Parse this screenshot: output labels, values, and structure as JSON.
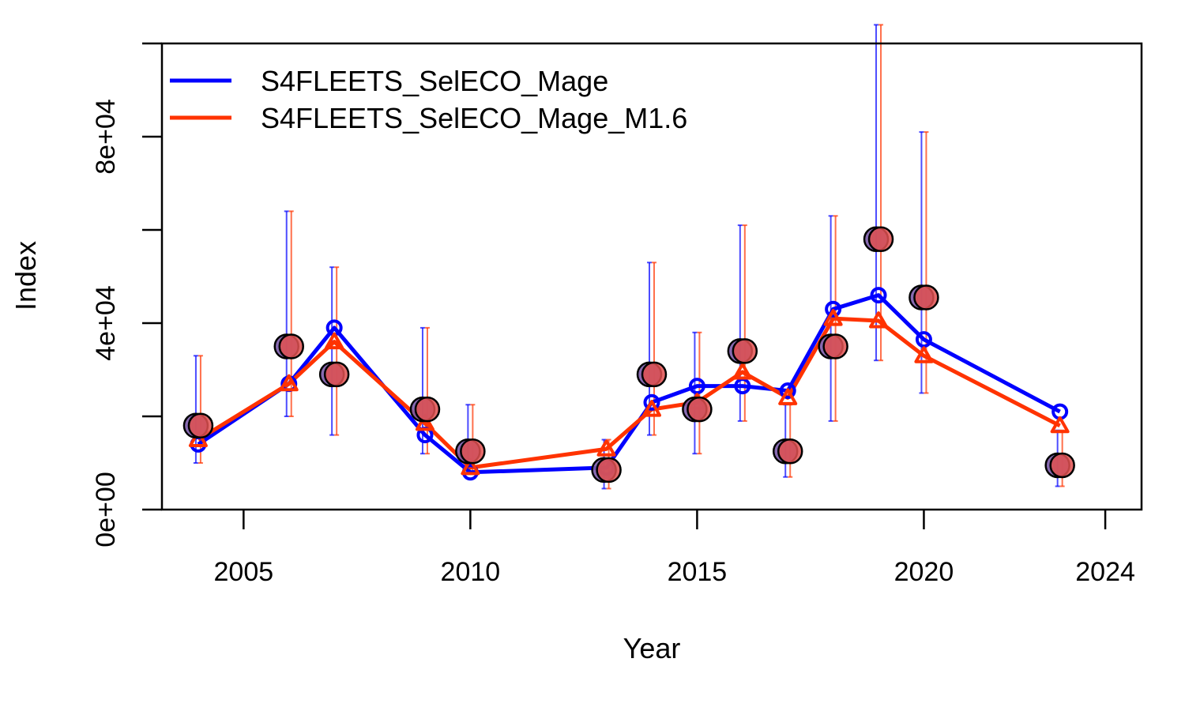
{
  "chart_data": {
    "type": "line",
    "title": "",
    "xlabel": "Year",
    "ylabel": "Index",
    "xlim": [
      2003.2,
      2024.8
    ],
    "ylim": [
      0,
      100000
    ],
    "x_ticks": [
      2005,
      2010,
      2015,
      2020,
      2024
    ],
    "y_ticks": [
      0,
      20000,
      40000,
      60000,
      80000,
      100000
    ],
    "y_tick_labels": [
      {
        "value": 0,
        "label": "0e+00"
      },
      {
        "value": 40000,
        "label": "4e+04"
      },
      {
        "value": 80000,
        "label": "8e+04"
      }
    ],
    "legend_position": "top-left",
    "observed": {
      "x": [
        2004,
        2006,
        2007,
        2009,
        2010,
        2013,
        2014,
        2015,
        2016,
        2017,
        2018,
        2019,
        2020,
        2023
      ],
      "y": [
        18000,
        35000,
        29000,
        21500,
        12500,
        8500,
        29000,
        21500,
        34000,
        12500,
        35000,
        58000,
        45500,
        9500
      ]
    },
    "error_bars": {
      "x": [
        2004,
        2006,
        2007,
        2009,
        2010,
        2013,
        2014,
        2015,
        2016,
        2017,
        2018,
        2019,
        2020,
        2023
      ],
      "lower": [
        10000,
        20000,
        16000,
        12000,
        8000,
        4500,
        16000,
        12000,
        19000,
        7000,
        19000,
        32000,
        25000,
        5000
      ],
      "upper": [
        33000,
        64000,
        52000,
        39000,
        22500,
        15000,
        53000,
        38000,
        61000,
        22500,
        63000,
        104000,
        81000,
        17000
      ]
    },
    "series": [
      {
        "name": "S4FLEETS_SelECO_Mage",
        "color": "#0000ff",
        "marker": "circle",
        "x": [
          2004,
          2006,
          2007,
          2009,
          2010,
          2013,
          2014,
          2015,
          2016,
          2017,
          2018,
          2019,
          2020,
          2023
        ],
        "y": [
          14000,
          27000,
          39000,
          16000,
          8000,
          9000,
          23000,
          26500,
          26500,
          25500,
          43000,
          46000,
          36500,
          21000
        ]
      },
      {
        "name": "S4FLEETS_SelECO_Mage_M1.6",
        "color": "#ff3300",
        "marker": "triangle",
        "x": [
          2004,
          2006,
          2007,
          2009,
          2010,
          2013,
          2014,
          2015,
          2016,
          2017,
          2018,
          2019,
          2020,
          2023
        ],
        "y": [
          15000,
          27000,
          36000,
          18500,
          9000,
          13000,
          21500,
          23000,
          29500,
          24000,
          41000,
          40500,
          33000,
          18000
        ]
      }
    ],
    "observed_fill": "#e05050",
    "observed_edge": "#000000",
    "grid": false
  }
}
